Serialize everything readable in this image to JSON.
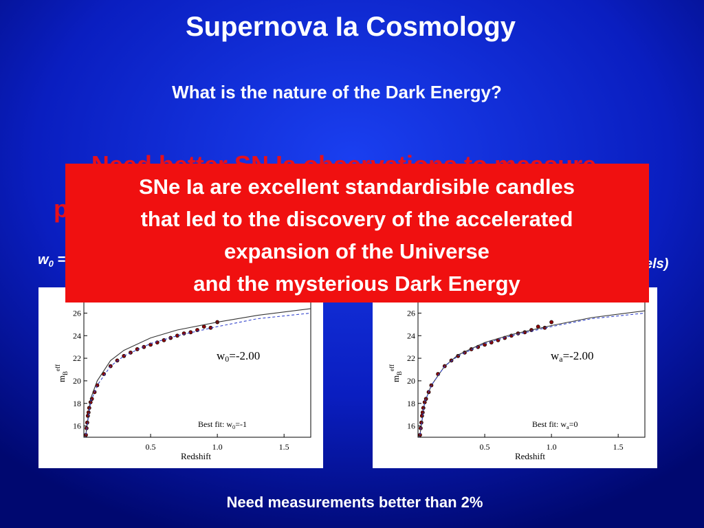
{
  "title": "Supernova Ia Cosmology",
  "question": "What is the nature of the Dark Energy?",
  "hidden_heading": [
    "Need better SN Ia observations to measure",
    "p"
  ],
  "hidden_left": [
    "w",
    "0",
    " ="
  ],
  "hidden_right": "els)",
  "callout": [
    "SNe Ia are excellent standardisible candles",
    "that led to the discovery of the  accelerated",
    "expansion of the Universe",
    "and the mysterious Dark Energy"
  ],
  "footer": "Need measurements better than 2%",
  "chart_data": [
    {
      "type": "scatter",
      "x_label": "Redshift",
      "y_label": [
        "m",
        "B",
        "eff"
      ],
      "annotation": [
        "w",
        "0",
        "=-2.00"
      ],
      "best_fit": [
        "Best fit: w",
        "0",
        "=-1"
      ],
      "xlim": [
        0,
        1.7
      ],
      "ylim": [
        15,
        27
      ],
      "xticks": [
        0.5,
        {
          "value": 1,
          "label": "1.0"
        },
        1.5
      ],
      "yticks": [
        16,
        18,
        20,
        22,
        24,
        26
      ],
      "series": [
        {
          "mark": "point",
          "color": "#8b0000",
          "x": [
            0.015,
            0.02,
            0.025,
            0.03,
            0.035,
            0.04,
            0.05,
            0.06,
            0.08,
            0.1,
            0.15,
            0.2,
            0.25,
            0.3,
            0.35,
            0.4,
            0.45,
            0.5,
            0.55,
            0.6,
            0.65,
            0.7,
            0.75,
            0.8,
            0.85,
            0.9,
            0.95,
            1.0
          ],
          "values": [
            15.2,
            15.8,
            16.3,
            16.9,
            17.2,
            17.6,
            18.1,
            18.4,
            19.0,
            19.6,
            20.6,
            21.3,
            21.8,
            22.2,
            22.5,
            22.8,
            23.0,
            23.2,
            23.4,
            23.6,
            23.8,
            24.0,
            24.2,
            24.3,
            24.5,
            24.8,
            24.7,
            25.2
          ]
        },
        {
          "mark": "line",
          "color": "#333333",
          "x": [
            0.01,
            0.05,
            0.1,
            0.2,
            0.3,
            0.5,
            0.7,
            1.0,
            1.3,
            1.7
          ],
          "values": [
            14.8,
            18.4,
            20.0,
            21.8,
            22.7,
            23.8,
            24.5,
            25.2,
            25.8,
            26.4
          ]
        },
        {
          "mark": "dashed",
          "color": "#3344cc",
          "x": [
            0.01,
            0.05,
            0.1,
            0.2,
            0.3,
            0.5,
            0.7,
            1.0,
            1.3,
            1.7
          ],
          "values": [
            14.8,
            18.1,
            19.6,
            21.3,
            22.2,
            23.3,
            24.0,
            24.8,
            25.5,
            26.0
          ]
        }
      ]
    },
    {
      "type": "scatter",
      "x_label": "Redshift",
      "y_label": [
        "m",
        "B",
        "eff"
      ],
      "annotation": [
        "w",
        "a",
        "=-2.00"
      ],
      "best_fit": [
        "Best fit: w",
        "a",
        "=0"
      ],
      "xlim": [
        0,
        1.7
      ],
      "ylim": [
        15,
        27
      ],
      "xticks": [
        0.5,
        {
          "value": 1,
          "label": "1.0"
        },
        1.5
      ],
      "yticks": [
        16,
        18,
        20,
        22,
        24,
        26
      ],
      "series": [
        {
          "mark": "point",
          "color": "#8b0000",
          "x": [
            0.015,
            0.02,
            0.025,
            0.03,
            0.035,
            0.04,
            0.05,
            0.06,
            0.08,
            0.1,
            0.15,
            0.2,
            0.25,
            0.3,
            0.35,
            0.4,
            0.45,
            0.5,
            0.55,
            0.6,
            0.65,
            0.7,
            0.75,
            0.8,
            0.85,
            0.9,
            0.95,
            1.0
          ],
          "values": [
            15.2,
            15.8,
            16.3,
            16.9,
            17.2,
            17.6,
            18.1,
            18.4,
            19.0,
            19.6,
            20.6,
            21.3,
            21.8,
            22.2,
            22.5,
            22.8,
            23.0,
            23.2,
            23.4,
            23.6,
            23.8,
            24.0,
            24.2,
            24.3,
            24.5,
            24.8,
            24.7,
            25.2
          ]
        },
        {
          "mark": "line",
          "color": "#333333",
          "x": [
            0.01,
            0.05,
            0.1,
            0.2,
            0.3,
            0.5,
            0.7,
            1.0,
            1.3,
            1.7
          ],
          "values": [
            14.8,
            18.1,
            19.6,
            21.3,
            22.3,
            23.4,
            24.1,
            24.9,
            25.6,
            26.2
          ]
        },
        {
          "mark": "dashed",
          "color": "#3344cc",
          "x": [
            0.01,
            0.05,
            0.1,
            0.2,
            0.3,
            0.5,
            0.7,
            1.0,
            1.3,
            1.7
          ],
          "values": [
            14.8,
            18.1,
            19.6,
            21.3,
            22.2,
            23.3,
            24.0,
            24.8,
            25.5,
            26.0
          ]
        }
      ]
    }
  ]
}
